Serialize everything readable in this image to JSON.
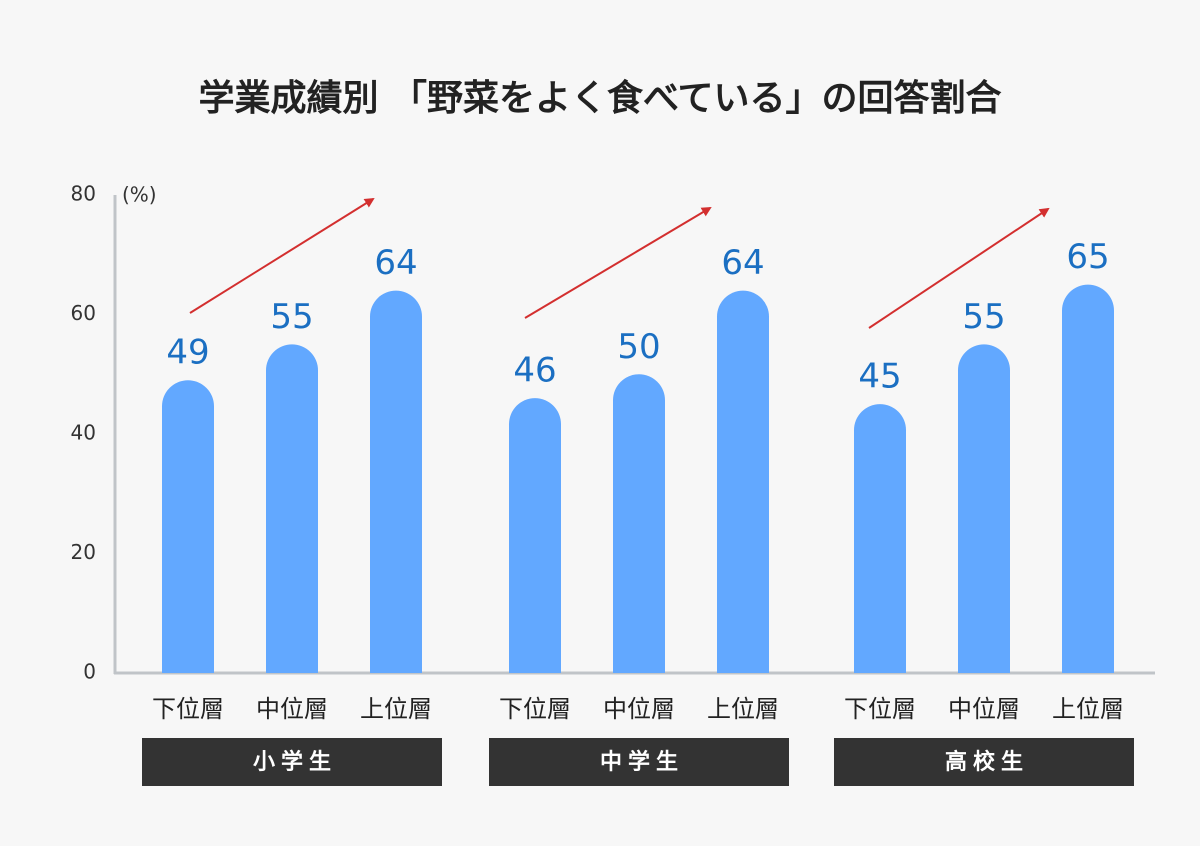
{
  "chart_data": {
    "type": "bar",
    "title": "学業成績別 「野菜をよく食べている」の回答割合",
    "y_label": "(%)",
    "color": "#62a8ff",
    "ylim": [
      0,
      80
    ],
    "yticks": [
      0,
      20,
      40,
      60,
      80
    ],
    "groups": [
      {
        "name": "小学生",
        "categories": [
          "下位層",
          "中位層",
          "上位層"
        ],
        "values": [
          49,
          55,
          64
        ]
      },
      {
        "name": "中学生",
        "categories": [
          "下位層",
          "中位層",
          "上位層"
        ],
        "values": [
          46,
          50,
          64
        ]
      },
      {
        "name": "高校生",
        "categories": [
          "下位層",
          "中位層",
          "上位層"
        ],
        "values": [
          45,
          55,
          65
        ]
      }
    ]
  }
}
